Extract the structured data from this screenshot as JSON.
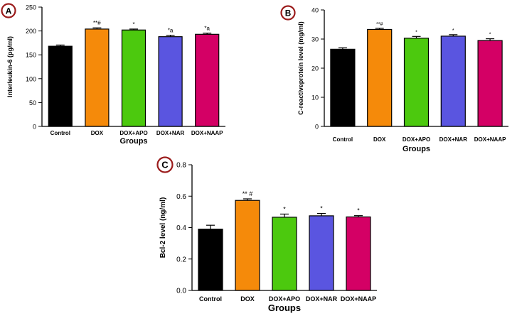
{
  "colors": {
    "Control": "#000000",
    "DOX": "#f58a0a",
    "DOX+APO": "#4cc90e",
    "DOX+NAR": "#5a55e0",
    "DOX+NAAP": "#d40065",
    "badge_ring": "#9b1c1c"
  },
  "chart_data": [
    {
      "panel": "A",
      "type": "bar",
      "ylabel": "Interleukin-6 (pg/ml)",
      "xlabel": "Groups",
      "ylim": [
        0,
        250
      ],
      "yticks": [
        0,
        50,
        100,
        150,
        200,
        250
      ],
      "categories": [
        "Control",
        "DOX",
        "DOX+APO",
        "DOX+NAR",
        "DOX+NAAP"
      ],
      "values": [
        168,
        204,
        202,
        188,
        193
      ],
      "errors": [
        2.5,
        2.5,
        2,
        3,
        2.5
      ],
      "annotations": [
        "",
        "**#",
        "*",
        "*a",
        "*a"
      ]
    },
    {
      "panel": "B",
      "type": "bar",
      "ylabel": "C-reactiveprotein level (mg/ml)",
      "xlabel": "Groups",
      "ylim": [
        0,
        40
      ],
      "yticks": [
        0,
        10,
        20,
        30,
        40
      ],
      "categories": [
        "Control",
        "DOX",
        "DOX+APO",
        "DOX+NAR",
        "DOX+NAAP"
      ],
      "values": [
        26.5,
        33.3,
        30.3,
        31.0,
        29.5
      ],
      "errors": [
        0.5,
        0.4,
        0.6,
        0.5,
        0.6
      ],
      "annotations": [
        "",
        "**#",
        "*",
        "*",
        "*"
      ]
    },
    {
      "panel": "C",
      "type": "bar",
      "ylabel": "Bcl-2 level (ng/ml)",
      "xlabel": "Groups",
      "ylim": [
        0,
        0.8
      ],
      "yticks": [
        "0.0",
        "0.2",
        "0.4",
        "0.6",
        "0.8"
      ],
      "categories": [
        "Control",
        "DOX",
        "DOX+APO",
        "DOX+NAR",
        "DOX+NAAP"
      ],
      "values": [
        0.39,
        0.573,
        0.466,
        0.475,
        0.468
      ],
      "errors": [
        0.025,
        0.01,
        0.02,
        0.015,
        0.008
      ],
      "annotations": [
        "",
        "** #",
        "*",
        "*",
        "*"
      ]
    }
  ]
}
